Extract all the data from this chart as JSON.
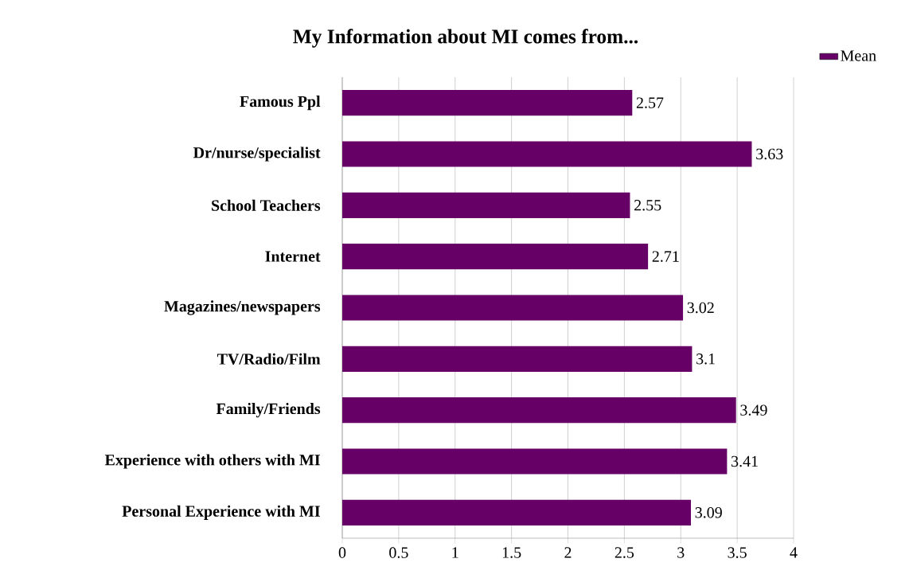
{
  "chart_data": {
    "type": "bar",
    "orientation": "horizontal",
    "title": "My Information about MI comes from...",
    "categories": [
      "Famous Ppl",
      "Dr/nurse/specialist",
      "School Teachers",
      "Internet",
      "Magazines/newspapers",
      "TV/Radio/Film",
      "Family/Friends",
      "Experience with others with MI",
      "Personal Experience with MI"
    ],
    "series": [
      {
        "name": "Mean",
        "color": "#660066",
        "values": [
          2.57,
          3.63,
          2.55,
          2.71,
          3.02,
          3.1,
          3.49,
          3.41,
          3.09
        ]
      }
    ],
    "data_labels": true,
    "xlim": [
      0,
      4
    ],
    "xticks": [
      0,
      0.5,
      1,
      1.5,
      2,
      2.5,
      3,
      3.5,
      4
    ],
    "grid": "x",
    "legend": "top right"
  }
}
